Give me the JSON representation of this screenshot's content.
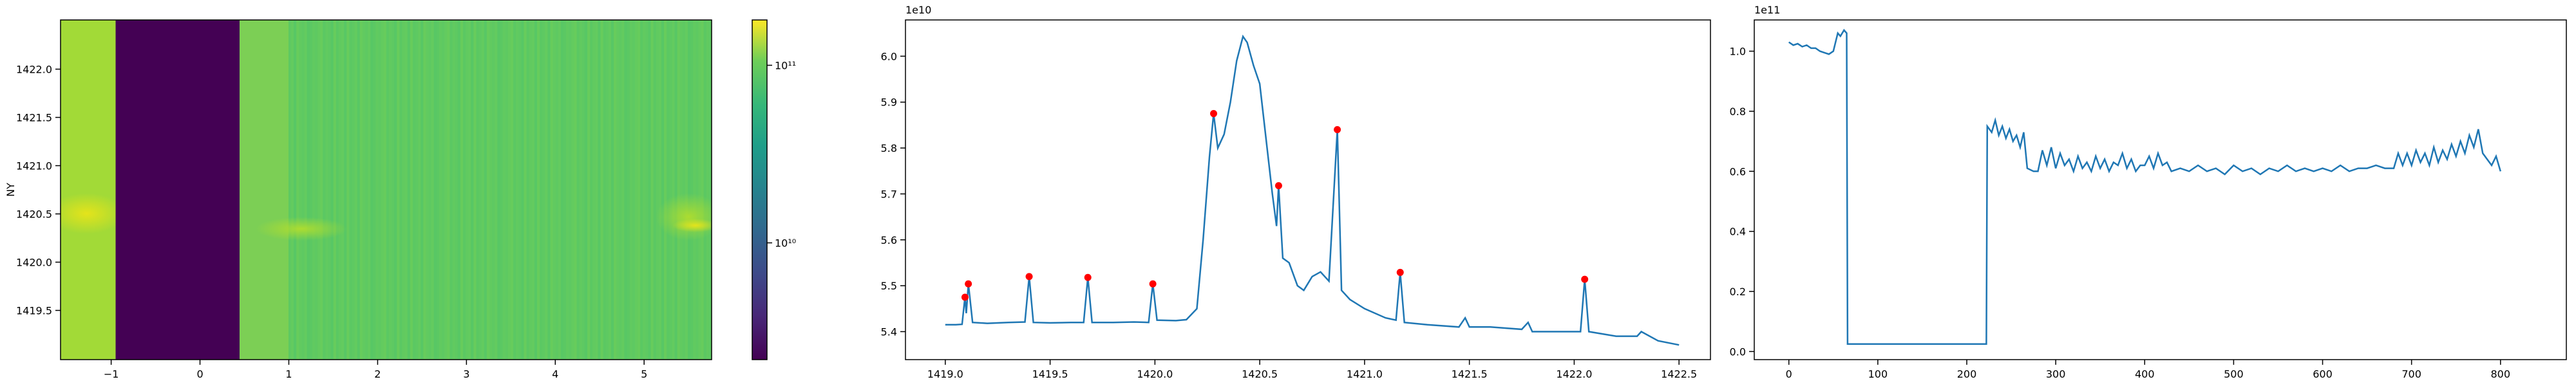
{
  "chart_data": [
    {
      "type": "heatmap",
      "ylabel": "NY",
      "xlim": [
        -1.57,
        5.76
      ],
      "ylim": [
        1418.99,
        1422.51
      ],
      "xticks": [
        {
          "value": -1,
          "label": "−1"
        },
        0,
        1,
        2,
        3,
        4,
        5
      ],
      "yticks": [
        1419.5,
        {
          "value": 1420,
          "label": "1420.0"
        },
        1420.5,
        {
          "value": 1421,
          "label": "1421.0"
        },
        1421.5,
        {
          "value": 1422,
          "label": "1422.0"
        }
      ],
      "colorbar": {
        "scale": "log",
        "lim": [
          2200000000,
          180000000000
        ],
        "ticks": [
          {
            "value": 10000000000,
            "label": "10¹⁰"
          },
          {
            "value": 100000000000,
            "label": "10¹¹"
          }
        ]
      }
    },
    {
      "type": "line",
      "offset_text": "1e10",
      "xlim": [
        1418.81,
        1422.65
      ],
      "ylim": [
        5.339,
        6.079
      ],
      "xticks": [
        {
          "value": 1419,
          "label": "1419.0"
        },
        1419.5,
        {
          "value": 1420,
          "label": "1420.0"
        },
        1420.5,
        {
          "value": 1421,
          "label": "1421.0"
        },
        1421.5,
        {
          "value": 1422,
          "label": "1422.0"
        },
        1422.5
      ],
      "yticks": [
        5.4,
        5.5,
        5.6,
        5.7,
        5.8,
        5.9,
        {
          "value": 6,
          "label": "6.0"
        }
      ],
      "series": [
        {
          "type": "line",
          "color": "#1f77b4",
          "x": [
            1419.0,
            1419.05,
            1419.08,
            1419.094,
            1419.1,
            1419.11,
            1419.13,
            1419.2,
            1419.3,
            1419.38,
            1419.4,
            1419.42,
            1419.5,
            1419.6,
            1419.66,
            1419.68,
            1419.7,
            1419.8,
            1419.9,
            1419.97,
            1419.99,
            1420.01,
            1420.1,
            1420.15,
            1420.2,
            1420.23,
            1420.26,
            1420.28,
            1420.3,
            1420.33,
            1420.36,
            1420.39,
            1420.42,
            1420.44,
            1420.47,
            1420.5,
            1420.53,
            1420.56,
            1420.58,
            1420.59,
            1420.61,
            1420.64,
            1420.68,
            1420.71,
            1420.75,
            1420.79,
            1420.83,
            1420.87,
            1420.89,
            1420.93,
            1421.0,
            1421.1,
            1421.15,
            1421.17,
            1421.19,
            1421.3,
            1421.45,
            1421.48,
            1421.5,
            1421.6,
            1421.75,
            1421.78,
            1421.8,
            1421.95,
            1422.03,
            1422.05,
            1422.07,
            1422.2,
            1422.3,
            1422.32,
            1422.4,
            1422.5
          ],
          "values": [
            5.415,
            5.415,
            5.416,
            5.475,
            5.44,
            5.504,
            5.42,
            5.418,
            5.42,
            5.421,
            5.52,
            5.42,
            5.419,
            5.42,
            5.42,
            5.518,
            5.42,
            5.42,
            5.421,
            5.42,
            5.504,
            5.425,
            5.424,
            5.426,
            5.45,
            5.6,
            5.78,
            5.875,
            5.8,
            5.83,
            5.9,
            5.99,
            6.043,
            6.03,
            5.98,
            5.94,
            5.82,
            5.7,
            5.63,
            5.718,
            5.56,
            5.55,
            5.5,
            5.49,
            5.52,
            5.53,
            5.51,
            5.84,
            5.49,
            5.47,
            5.45,
            5.43,
            5.425,
            5.529,
            5.42,
            5.415,
            5.41,
            5.43,
            5.41,
            5.41,
            5.405,
            5.42,
            5.4,
            5.4,
            5.4,
            5.514,
            5.4,
            5.39,
            5.39,
            5.4,
            5.38,
            5.371
          ]
        },
        {
          "type": "scatter",
          "color": "#ff0000",
          "x": [
            1419.094,
            1419.11,
            1419.4,
            1419.68,
            1419.99,
            1420.28,
            1420.59,
            1420.87,
            1421.17,
            1422.05
          ],
          "values": [
            5.475,
            5.504,
            5.52,
            5.518,
            5.504,
            5.875,
            5.718,
            5.84,
            5.529,
            5.514
          ]
        }
      ]
    },
    {
      "type": "line",
      "offset_text": "1e11",
      "xlim": [
        -38.9,
        874
      ],
      "ylim": [
        -0.027,
        1.104
      ],
      "xticks": [
        0,
        100,
        200,
        300,
        400,
        500,
        600,
        700,
        800
      ],
      "yticks": [
        {
          "value": 0,
          "label": "0.0"
        },
        0.2,
        0.4,
        0.6,
        0.8,
        {
          "value": 1,
          "label": "1.0"
        }
      ],
      "series": [
        {
          "type": "line",
          "color": "#1f77b4",
          "x": [
            0,
            5,
            10,
            15,
            20,
            25,
            30,
            35,
            40,
            45,
            50,
            55,
            58,
            62,
            65,
            66,
            100,
            150,
            200,
            222,
            223,
            228,
            232,
            236,
            240,
            244,
            248,
            252,
            256,
            260,
            264,
            268,
            275,
            280,
            285,
            290,
            295,
            300,
            305,
            310,
            315,
            320,
            325,
            330,
            335,
            340,
            345,
            350,
            355,
            360,
            365,
            370,
            375,
            380,
            385,
            390,
            395,
            400,
            405,
            410,
            415,
            420,
            425,
            430,
            440,
            450,
            460,
            470,
            480,
            490,
            500,
            510,
            520,
            530,
            540,
            550,
            560,
            570,
            580,
            590,
            600,
            610,
            620,
            630,
            640,
            650,
            660,
            670,
            680,
            685,
            690,
            695,
            700,
            705,
            710,
            715,
            720,
            725,
            730,
            735,
            740,
            745,
            750,
            755,
            760,
            765,
            770,
            775,
            780,
            785,
            790,
            795,
            800
          ],
          "values": [
            1.03,
            1.02,
            1.025,
            1.015,
            1.02,
            1.01,
            1.01,
            1.0,
            0.995,
            0.99,
            1.0,
            1.06,
            1.05,
            1.07,
            1.06,
            0.025,
            0.025,
            0.025,
            0.025,
            0.025,
            0.75,
            0.73,
            0.77,
            0.72,
            0.75,
            0.71,
            0.74,
            0.7,
            0.72,
            0.68,
            0.73,
            0.61,
            0.6,
            0.6,
            0.67,
            0.62,
            0.68,
            0.61,
            0.66,
            0.62,
            0.64,
            0.6,
            0.65,
            0.61,
            0.63,
            0.6,
            0.65,
            0.61,
            0.64,
            0.6,
            0.63,
            0.62,
            0.66,
            0.61,
            0.64,
            0.6,
            0.62,
            0.62,
            0.65,
            0.61,
            0.66,
            0.62,
            0.63,
            0.6,
            0.61,
            0.6,
            0.62,
            0.6,
            0.61,
            0.59,
            0.62,
            0.6,
            0.61,
            0.59,
            0.61,
            0.6,
            0.62,
            0.6,
            0.61,
            0.6,
            0.61,
            0.6,
            0.62,
            0.6,
            0.61,
            0.61,
            0.62,
            0.61,
            0.61,
            0.66,
            0.62,
            0.66,
            0.62,
            0.67,
            0.63,
            0.66,
            0.62,
            0.68,
            0.63,
            0.67,
            0.64,
            0.69,
            0.65,
            0.7,
            0.66,
            0.72,
            0.68,
            0.74,
            0.66,
            0.64,
            0.62,
            0.65,
            0.6
          ]
        }
      ]
    }
  ]
}
